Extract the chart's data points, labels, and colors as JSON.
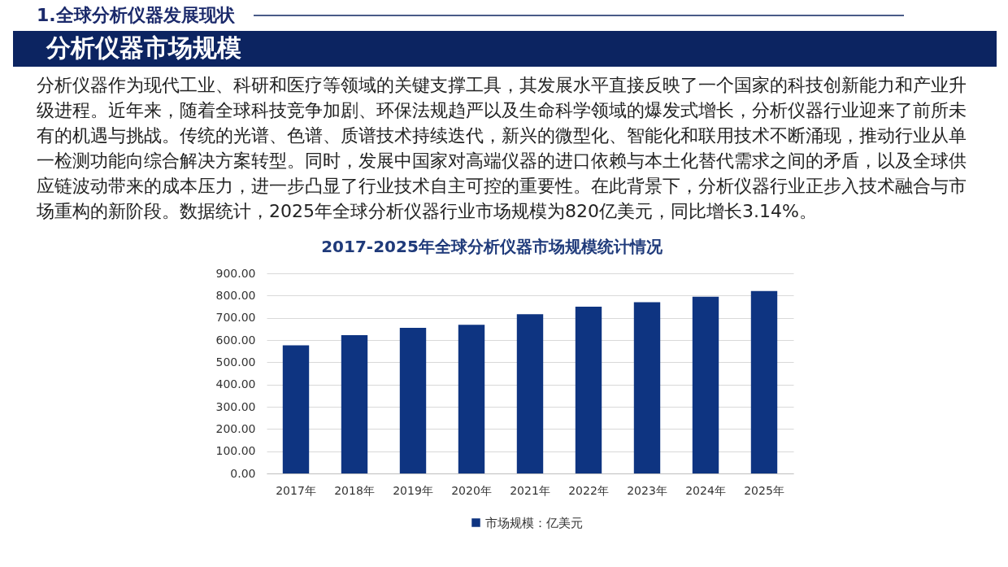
{
  "chart_data": {
    "type": "bar",
    "title": "2017-2025年全球分析仪器市场规模统计情况",
    "annotations": [
      "1.全球分析仪器发展现状",
      "分析仪器市场规模",
      "分析仪器作为现代工业、科研和医疗等领域的关键支撑工具，其发展水平直接反映了一个国家的科技创新能力和产业升级进程。近年来，随着全球科技竞争加剧、环保法规趋严以及生命科学领域的爆发式增长，分析仪器行业迎来了前所未有的机遇与挑战。传统的光谱、色谱、质谱技术持续迭代，新兴的微型化、智能化和联用技术不断涌现，推动行业从单一检测功能向综合解决方案转型。同时，发展中国家对高端仪器的进口依赖与本土化替代需求之间的矛盾，以及全球供应链波动带来的成本压力，进一步凸显了行业技术自主可控的重要性。在此背景下，分析仪器行业正步入技术融合与市场重构的新阶段。数据统计，2025年全球分析仪器行业市场规模为820亿美元，同比增长3.14%。"
    ],
    "categories": [
      "2017年",
      "2018年",
      "2019年",
      "2020年",
      "2021年",
      "2022年",
      "2023年",
      "2024年",
      "2025年"
    ],
    "series": [
      {
        "name": "市场规模：亿美元",
        "color": "#0e3481",
        "values": [
          576,
          622,
          655,
          669,
          716,
          750,
          770,
          795,
          820
        ]
      }
    ],
    "ylim": [
      0,
      900
    ],
    "yticks": [
      {
        "value": 0,
        "label": "0.00"
      },
      {
        "value": 100,
        "label": "100.00"
      },
      {
        "value": 200,
        "label": "200.00"
      },
      {
        "value": 300,
        "label": "300.00"
      },
      {
        "value": 400,
        "label": "400.00"
      },
      {
        "value": 500,
        "label": "500.00"
      },
      {
        "value": 600,
        "label": "600.00"
      },
      {
        "value": 700,
        "label": "700.00"
      },
      {
        "value": 800,
        "label": "800.00"
      },
      {
        "value": 900,
        "label": "900.00"
      }
    ],
    "grid": "y",
    "legend": "bottom"
  }
}
